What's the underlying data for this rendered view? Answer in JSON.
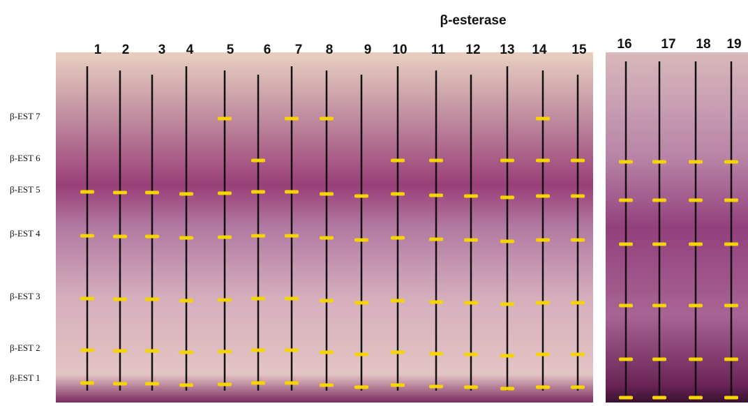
{
  "title": "β-esterase",
  "lanes": [
    "1",
    "2",
    "3",
    "4",
    "5",
    "6",
    "7",
    "8",
    "9",
    "10",
    "11",
    "12",
    "13",
    "14",
    "15",
    "16",
    "17",
    "18",
    "19"
  ],
  "bands": [
    "β-EST 7",
    "β-EST 6",
    "β-EST 5",
    "β-EST 4",
    "β-EST 3",
    "β-EST 2",
    "β-EST 1"
  ]
}
